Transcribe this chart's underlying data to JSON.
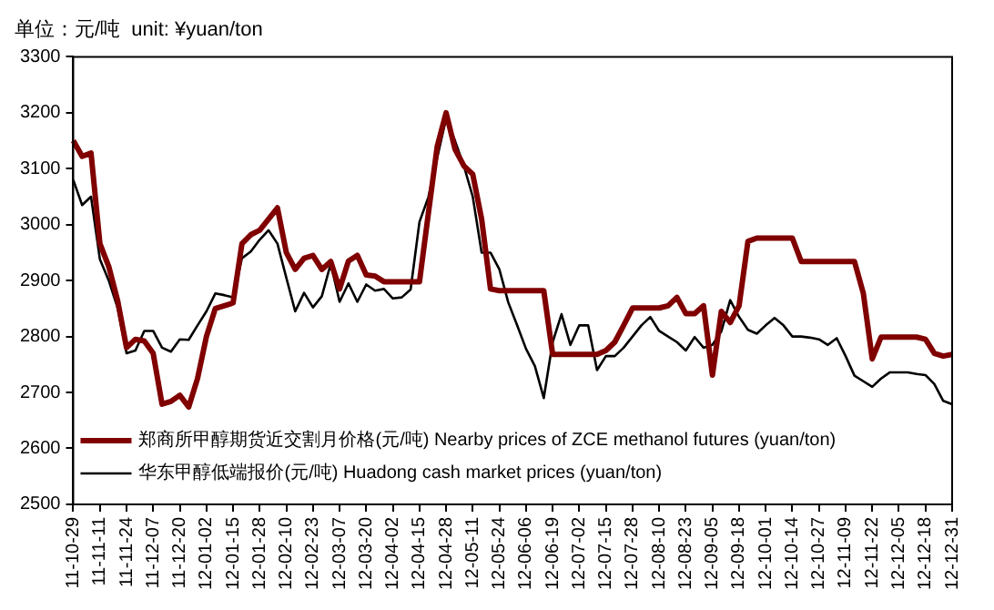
{
  "chart_data": {
    "type": "line",
    "title": "单位：元/吨  unit: ¥yuan/ton",
    "categories": [
      "11-10-29",
      null,
      null,
      "11-11-11",
      null,
      null,
      "11-11-24",
      null,
      null,
      "11-12-07",
      null,
      null,
      "11-12-20",
      null,
      null,
      "12-01-02",
      null,
      null,
      "12-01-15",
      null,
      null,
      "12-01-28",
      null,
      null,
      "12-02-10",
      null,
      null,
      "12-02-23",
      null,
      null,
      "12-03-07",
      null,
      null,
      "12-03-20",
      null,
      null,
      "12-04-02",
      null,
      null,
      "12-04-15",
      null,
      null,
      "12-04-28",
      null,
      null,
      "12-05-11",
      null,
      null,
      "12-05-24",
      null,
      null,
      "12-06-06",
      null,
      null,
      "12-06-19",
      null,
      null,
      "12-07-02",
      null,
      null,
      "12-07-15",
      null,
      null,
      "12-07-28",
      null,
      null,
      "12-08-10",
      null,
      null,
      "12-08-23",
      null,
      null,
      "12-09-05",
      null,
      null,
      "12-09-18",
      null,
      null,
      "12-10-01",
      null,
      null,
      "12-10-14",
      null,
      null,
      "12-10-27",
      null,
      null,
      "12-11-09",
      null,
      null,
      "12-11-22",
      null,
      null,
      "12-12-05",
      null,
      null,
      "12-12-18",
      null,
      null,
      "12-12-31"
    ],
    "series": [
      {
        "name": "郑商所甲醇期货近交割月价格(元/吨) Nearby prices of ZCE methanol futures (yuan/ton)",
        "color": "#800000",
        "values": [
          3150,
          3122,
          3128,
          2966,
          2925,
          2864,
          2780,
          2795,
          2792,
          2770,
          2679,
          2684,
          2695,
          2674,
          2725,
          2800,
          2850,
          2855,
          2860,
          2966,
          2982,
          2990,
          3010,
          3030,
          2950,
          2920,
          2940,
          2945,
          2920,
          2934,
          2885,
          2935,
          2945,
          2910,
          2908,
          2898,
          2898,
          2898,
          2898,
          2898,
          3020,
          3140,
          3200,
          3135,
          3105,
          3090,
          3010,
          2885,
          2882,
          2882,
          2882,
          2882,
          2882,
          2882,
          2768,
          2768,
          2768,
          2768,
          2768,
          2768,
          2775,
          2790,
          2820,
          2851,
          2851,
          2851,
          2851,
          2855,
          2870,
          2841,
          2841,
          2855,
          2731,
          2845,
          2825,
          2855,
          2970,
          2976,
          2976,
          2976,
          2976,
          2976,
          2934,
          2934,
          2934,
          2934,
          2934,
          2934,
          2934,
          2877,
          2760,
          2799,
          2799,
          2799,
          2799,
          2799,
          2795,
          2770,
          2765,
          2768
        ]
      },
      {
        "name": "华东甲醇低端报价(元/吨) Huadong cash market prices (yuan/ton)",
        "color": "#000000",
        "values": [
          3080,
          3035,
          3050,
          2938,
          2900,
          2851,
          2770,
          2775,
          2810,
          2810,
          2780,
          2773,
          2795,
          2794,
          2820,
          2845,
          2877,
          2874,
          2870,
          2940,
          2952,
          2973,
          2990,
          2966,
          2905,
          2845,
          2878,
          2852,
          2872,
          2930,
          2862,
          2895,
          2862,
          2893,
          2882,
          2885,
          2868,
          2870,
          2884,
          3005,
          3049,
          3120,
          3190,
          3150,
          3105,
          3050,
          2950,
          2950,
          2920,
          2861,
          2820,
          2778,
          2747,
          2690,
          2790,
          2840,
          2785,
          2820,
          2820,
          2740,
          2765,
          2765,
          2780,
          2800,
          2820,
          2835,
          2810,
          2800,
          2790,
          2775,
          2799,
          2780,
          2785,
          2809,
          2865,
          2835,
          2812,
          2805,
          2820,
          2833,
          2820,
          2800,
          2800,
          2798,
          2795,
          2785,
          2797,
          2765,
          2730,
          2720,
          2710,
          2725,
          2736,
          2736,
          2736,
          2733,
          2731,
          2715,
          2685,
          2679
        ]
      }
    ],
    "ylim": [
      2500,
      3300
    ],
    "yticks": [
      2500,
      2600,
      2700,
      2800,
      2900,
      3000,
      3100,
      3200,
      3300
    ],
    "grid": false,
    "legend": "bottom left",
    "marker": "none",
    "line_style": "solid"
  }
}
